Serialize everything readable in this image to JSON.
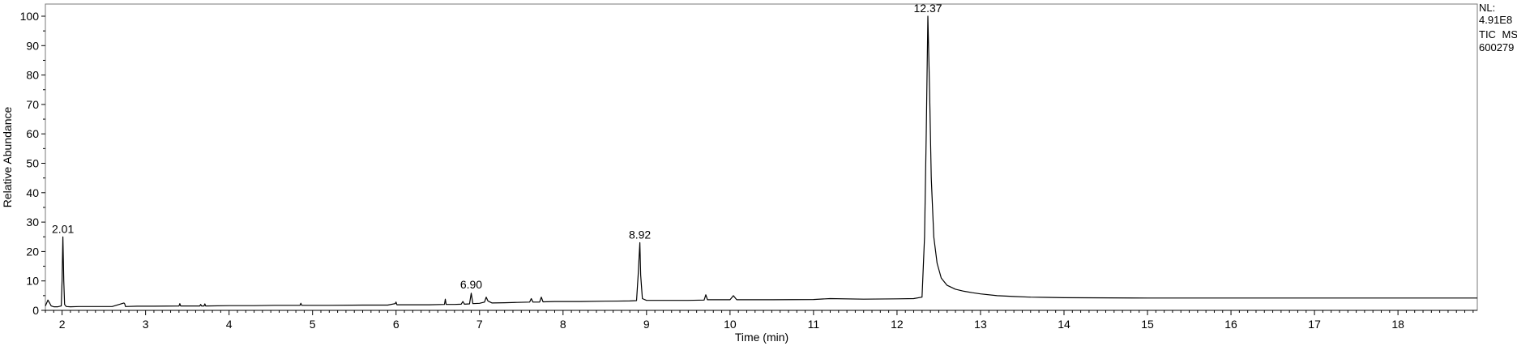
{
  "header": {
    "nl_label": "NL:",
    "nl_value": "4.91E8",
    "trace_label": "TIC  MS",
    "sample_id": "600279"
  },
  "chart_data": {
    "type": "line",
    "title": "",
    "xlabel": "Time (min)",
    "ylabel": "Relative Abundance",
    "xlim": [
      1.8,
      18.95
    ],
    "ylim": [
      0,
      100
    ],
    "x_ticks": [
      2,
      3,
      4,
      5,
      6,
      7,
      8,
      9,
      10,
      11,
      12,
      13,
      14,
      15,
      16,
      17,
      18
    ],
    "y_ticks": [
      0,
      10,
      20,
      30,
      40,
      50,
      60,
      70,
      80,
      90,
      100
    ],
    "grid": false,
    "peak_labels": [
      {
        "x": 2.01,
        "y": 25,
        "label": "2.01"
      },
      {
        "x": 6.9,
        "y": 6,
        "label": "6.90"
      },
      {
        "x": 8.92,
        "y": 23,
        "label": "8.92"
      },
      {
        "x": 12.37,
        "y": 100,
        "label": "12.37"
      }
    ],
    "series": [
      {
        "color": "#000000",
        "x": [
          1.8,
          1.83,
          1.85,
          1.87,
          1.9,
          1.95,
          1.99,
          2.0,
          2.01,
          2.02,
          2.03,
          2.05,
          2.1,
          2.2,
          2.4,
          2.6,
          2.74,
          2.75,
          2.76,
          2.9,
          3.1,
          3.4,
          3.41,
          3.42,
          3.65,
          3.66,
          3.67,
          3.7,
          3.71,
          3.72,
          4.0,
          4.3,
          4.55,
          4.85,
          4.86,
          4.87,
          5.2,
          5.6,
          5.9,
          5.99,
          6.0,
          6.01,
          6.2,
          6.4,
          6.58,
          6.59,
          6.6,
          6.7,
          6.78,
          6.8,
          6.82,
          6.88,
          6.9,
          6.92,
          7.0,
          7.06,
          7.08,
          7.1,
          7.15,
          7.3,
          7.45,
          7.6,
          7.62,
          7.64,
          7.72,
          7.74,
          7.76,
          7.9,
          8.2,
          8.5,
          8.8,
          8.88,
          8.9,
          8.92,
          8.93,
          8.95,
          9.0,
          9.2,
          9.5,
          9.69,
          9.71,
          9.73,
          9.85,
          10.0,
          10.04,
          10.08,
          10.2,
          10.5,
          11.0,
          11.2,
          11.6,
          12.0,
          12.2,
          12.3,
          12.33,
          12.35,
          12.37,
          12.39,
          12.41,
          12.44,
          12.48,
          12.53,
          12.6,
          12.7,
          12.8,
          12.9,
          13.0,
          13.2,
          13.4,
          13.6,
          13.8,
          14.0,
          15.0,
          16.0,
          17.0,
          18.0,
          18.95
        ],
        "y": [
          1.5,
          3.5,
          2.5,
          1.5,
          1.2,
          1.2,
          1.5,
          10,
          25,
          10,
          2,
          1.3,
          1.2,
          1.3,
          1.3,
          1.3,
          2.5,
          2.2,
          1.3,
          1.4,
          1.4,
          1.5,
          2.3,
          1.5,
          1.5,
          2.0,
          1.5,
          1.5,
          2.2,
          1.5,
          1.6,
          1.6,
          1.7,
          1.7,
          2.4,
          1.7,
          1.7,
          1.8,
          1.8,
          2.3,
          2.8,
          1.9,
          1.9,
          1.9,
          2.0,
          3.8,
          2.0,
          2.0,
          2.1,
          3.0,
          2.1,
          2.2,
          5.8,
          2.3,
          2.4,
          2.8,
          4.5,
          3.2,
          2.5,
          2.6,
          2.7,
          2.8,
          4.0,
          2.8,
          2.8,
          4.5,
          2.9,
          3.0,
          3.0,
          3.1,
          3.2,
          3.3,
          12,
          23,
          12,
          4,
          3.4,
          3.4,
          3.4,
          3.5,
          5.3,
          3.6,
          3.6,
          3.6,
          5.0,
          3.6,
          3.6,
          3.6,
          3.7,
          4.0,
          3.8,
          3.9,
          4.0,
          4.5,
          25,
          60,
          100,
          75,
          45,
          25,
          16,
          11,
          8.5,
          7.2,
          6.5,
          6.0,
          5.6,
          5.0,
          4.7,
          4.5,
          4.4,
          4.3,
          4.2,
          4.2,
          4.2,
          4.2,
          4.2
        ]
      }
    ]
  }
}
